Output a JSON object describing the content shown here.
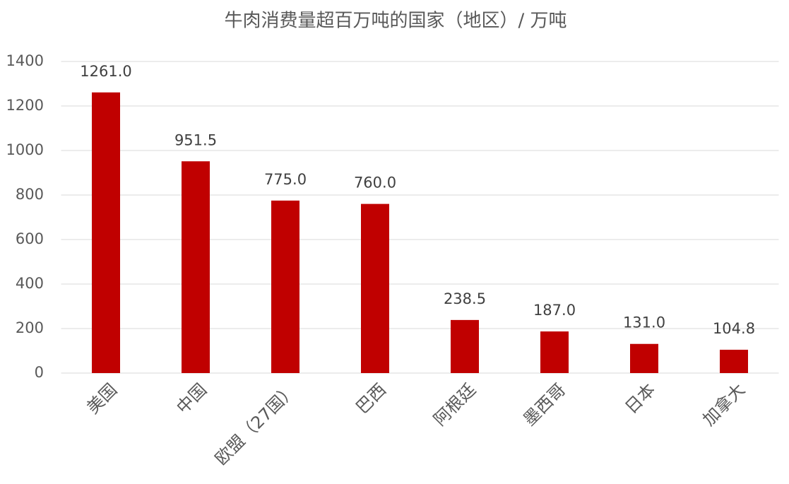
{
  "chart_data": {
    "type": "bar",
    "title": "牛肉消费量超百万吨的国家（地区）/ 万吨",
    "categories": [
      "美国",
      "中国",
      "欧盟（27国）",
      "巴西",
      "阿根廷",
      "墨西哥",
      "日本",
      "加拿大"
    ],
    "values": [
      1261,
      951.5,
      775,
      760,
      238.5,
      187,
      131,
      104.8
    ],
    "value_labels": [
      "1261.0",
      "951.5",
      "775.0",
      "760.0",
      "238.5",
      "187.0",
      "131.0",
      "104.8"
    ],
    "color": "#c00000",
    "ylim": [
      0,
      1400
    ],
    "yticks": [
      0,
      200,
      400,
      600,
      800,
      1000,
      1200,
      1400
    ],
    "grid": true
  }
}
